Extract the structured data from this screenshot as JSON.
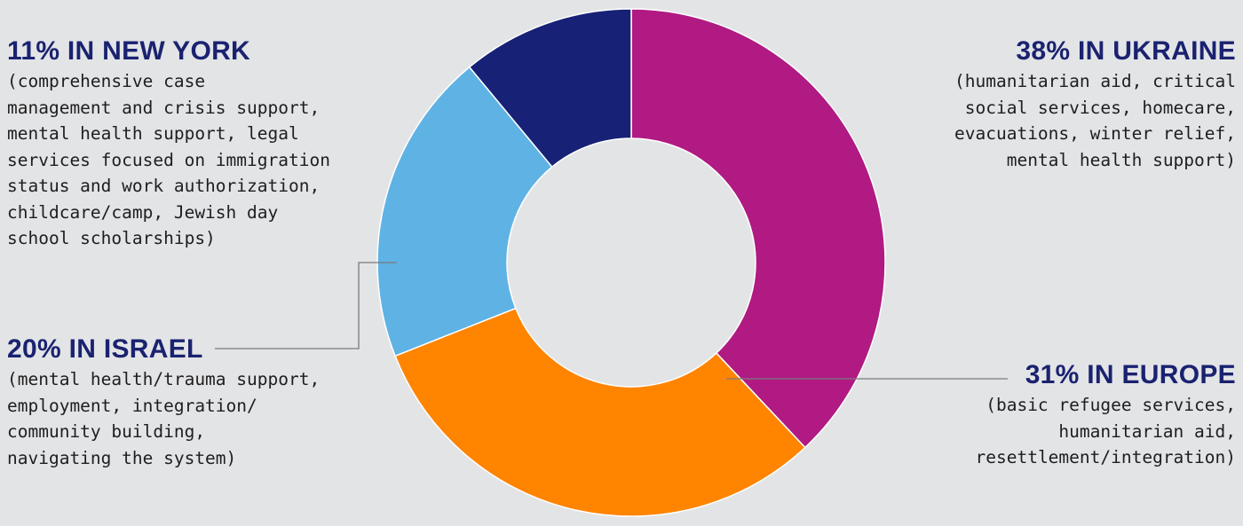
{
  "chart_data": {
    "type": "pie",
    "variant": "donut",
    "unit": "%",
    "slices": [
      {
        "label": "IN UKRAINE",
        "value": 38,
        "color": "#b01a82",
        "title": "38% IN UKRAINE",
        "description": "(humanitarian aid, critical\nsocial services, homecare,\nevacuations, winter relief,\nmental health support)"
      },
      {
        "label": "IN EUROPE",
        "value": 31,
        "color": "#ff8400",
        "title": "31% IN EUROPE",
        "description": "(basic refugee services,\nhumanitarian aid,\nresettlement/integration)"
      },
      {
        "label": "IN ISRAEL",
        "value": 20,
        "color": "#5fb2e4",
        "title": "20% IN ISRAEL",
        "description": "(mental health/trauma support,\nemployment, integration/\ncommunity building,\nnavigating the system)"
      },
      {
        "label": "IN NEW YORK",
        "value": 11,
        "color": "#172176",
        "title": "11% IN NEW YORK",
        "description": "(comprehensive case\nmanagement and crisis support,\nmental health support, legal\nservices focused on immigration\nstatus and work authorization,\nchildcare/camp, Jewish day\nschool scholarships)"
      }
    ],
    "leader_line_color": "#7a7a7a",
    "background": "#e3e4e6"
  }
}
